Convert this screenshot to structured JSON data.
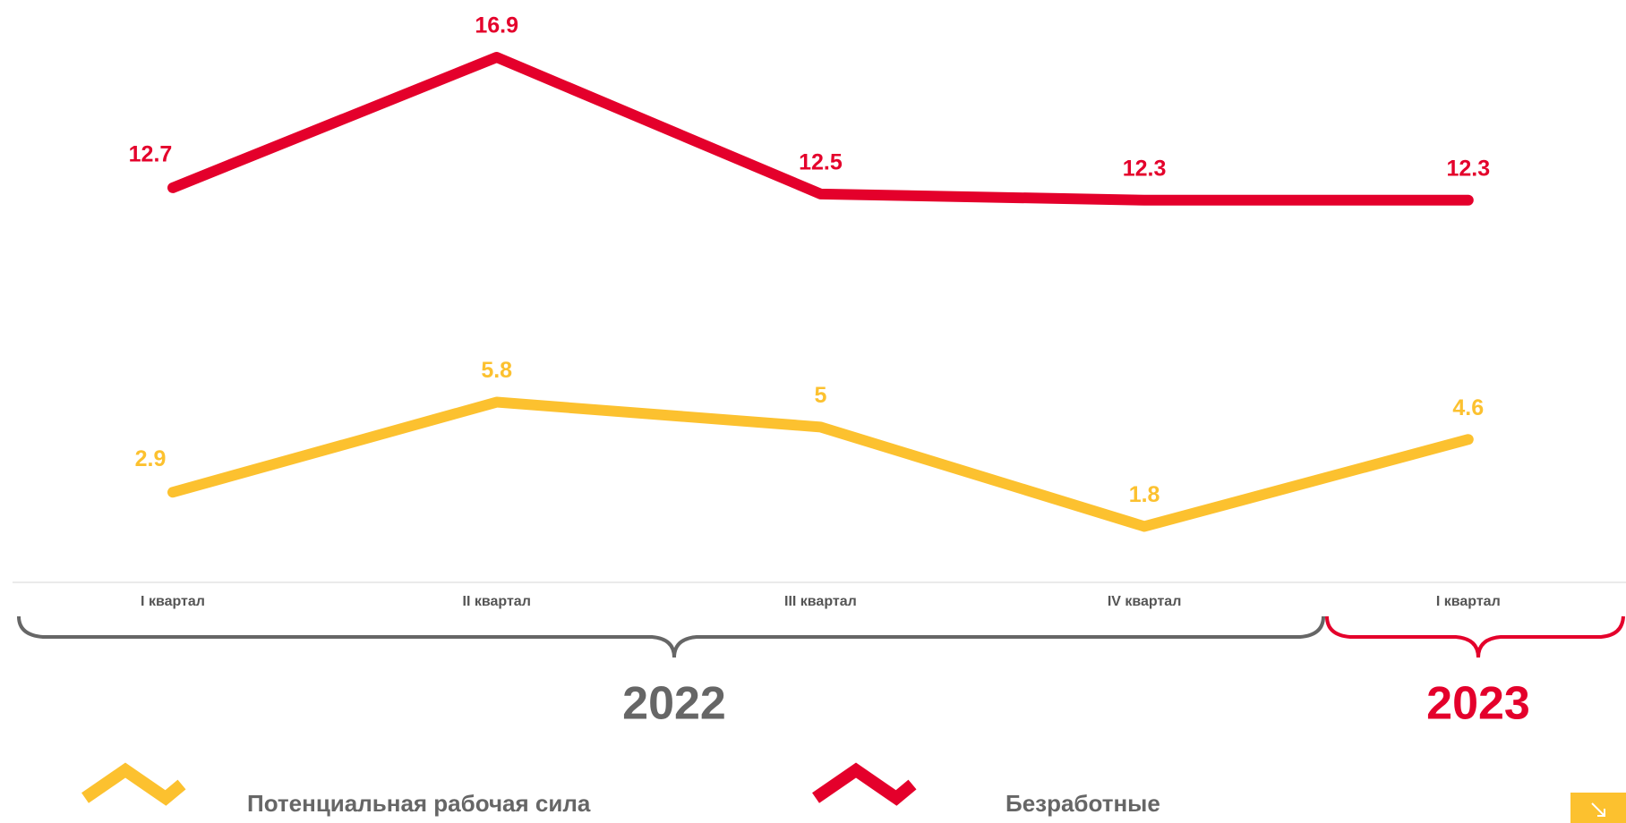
{
  "chart_data": {
    "type": "line",
    "categories": [
      "I квартал",
      "II квартал",
      "III квартал",
      "IV квартал",
      "I квартал"
    ],
    "series": [
      {
        "name": "Потенциальная рабочая сила",
        "color": "#fcc12f",
        "values": [
          2.9,
          5.8,
          5.0,
          1.8,
          4.6
        ]
      },
      {
        "name": "Безработные",
        "color": "#e4002b",
        "values": [
          12.7,
          16.9,
          12.5,
          12.3,
          12.3
        ]
      }
    ],
    "groups": [
      {
        "label": "2022",
        "color": "#666666"
      },
      {
        "label": "2023",
        "color": "#e4002b"
      }
    ]
  }
}
